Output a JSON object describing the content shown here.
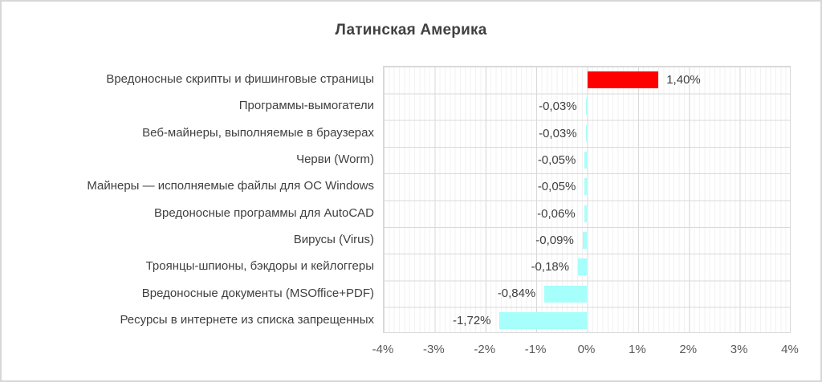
{
  "chart_data": {
    "type": "bar",
    "orientation": "horizontal",
    "title": "Латинская Америка",
    "categories": [
      "Вредоносные скрипты и фишинговые страницы",
      "Программы-вымогатели",
      "Веб-майнеры, выполняемые в браузерах",
      "Черви (Worm)",
      "Майнеры — исполняемые файлы для ОС Windows",
      "Вредоносные программы для AutoCAD",
      "Вирусы (Virus)",
      "Троянцы-шпионы, бэкдоры и кейлоггеры",
      "Вредоносные документы (MSOffice+PDF)",
      "Ресурсы в интернете из списка запрещенных"
    ],
    "values": [
      1.4,
      -0.03,
      -0.03,
      -0.05,
      -0.05,
      -0.06,
      -0.09,
      -0.18,
      -0.84,
      -1.72
    ],
    "value_labels": [
      "1,40%",
      "-0,03%",
      "-0,03%",
      "-0,05%",
      "-0,05%",
      "-0,06%",
      "-0,09%",
      "-0,18%",
      "-0,84%",
      "-1,72%"
    ],
    "xlim": [
      -4,
      4
    ],
    "x_tick_labels": [
      "-4%",
      "-3%",
      "-2%",
      "-1%",
      "0%",
      "1%",
      "2%",
      "3%",
      "4%"
    ],
    "x_major_unit": 1,
    "x_minor_unit": 0.1,
    "grid": "vertical major+minor, horizontal row lines",
    "legend_position": "none",
    "positive_color": "#ff0000",
    "negative_color": "#a6fffa",
    "title_color": "#404040",
    "label_color": "#404040",
    "axis_label_color": "#595959",
    "major_grid_color": "#d9d9d9",
    "minor_grid_color": "#f2f2f2"
  }
}
